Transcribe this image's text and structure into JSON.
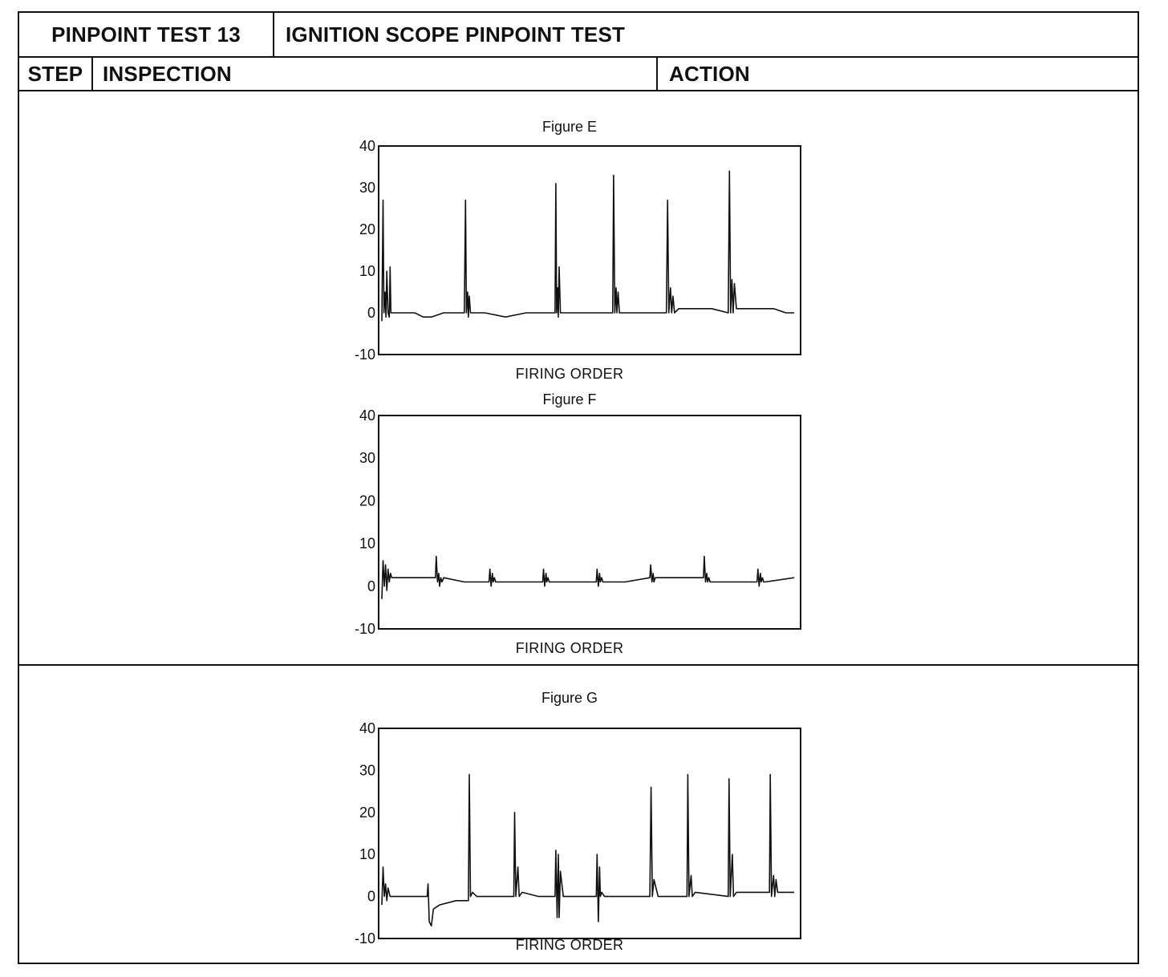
{
  "header": {
    "test_number": "PINPOINT TEST 13",
    "test_title": "IGNITION SCOPE PINPOINT TEST"
  },
  "columns": {
    "step": "STEP",
    "inspection": "INSPECTION",
    "action": "ACTION"
  },
  "figures": [
    {
      "title": "Figure E",
      "xlabel": "FIRING ORDER",
      "y_ticks": [
        "40",
        "30",
        "20",
        "10",
        "0",
        "-10"
      ]
    },
    {
      "title": "Figure F",
      "xlabel": "FIRING ORDER",
      "y_ticks": [
        "40",
        "30",
        "20",
        "10",
        "0",
        "-10"
      ]
    },
    {
      "title": "Figure G",
      "xlabel": "FIRING ORDER",
      "y_ticks": [
        "40",
        "30",
        "20",
        "10",
        "0",
        "-10"
      ]
    }
  ],
  "chart_data": [
    {
      "type": "line",
      "title": "Figure E",
      "xlabel": "FIRING ORDER",
      "ylabel": "",
      "ylim": [
        -10,
        40
      ],
      "x": [
        0,
        0.3,
        0.5,
        0.8,
        1,
        1.2,
        1.5,
        1.8,
        2,
        2.2,
        2.5,
        3,
        5,
        8,
        10,
        12,
        15,
        20,
        20.3,
        20.5,
        20.8,
        21,
        21.2,
        21.5,
        22,
        25,
        30,
        35,
        42,
        42.2,
        42.4,
        42.6,
        42.8,
        43,
        43.3,
        43.6,
        44,
        45,
        50,
        55,
        56,
        56.2,
        56.5,
        56.8,
        57,
        57.3,
        57.6,
        58,
        60,
        63,
        69,
        69.3,
        69.6,
        70,
        70.3,
        70.6,
        71,
        72,
        75,
        80,
        84,
        84.3,
        84.6,
        84.9,
        85.2,
        85.5,
        86,
        90,
        95,
        98,
        98.3,
        98.6,
        98.9,
        99.2,
        99.5,
        100
      ],
      "y": [
        -2,
        27,
        0,
        5,
        -1,
        10,
        0,
        -1,
        11,
        0,
        0,
        0,
        0,
        0,
        -1,
        -1,
        0,
        0,
        27,
        0,
        5,
        -1,
        4,
        0,
        0,
        0,
        -1,
        0,
        0,
        31,
        0,
        6,
        -1,
        11,
        0,
        0,
        0,
        0,
        0,
        0,
        0,
        33,
        0,
        6,
        0,
        5,
        0,
        0,
        0,
        0,
        0,
        27,
        0,
        6,
        0,
        4,
        0,
        1,
        1,
        1,
        0,
        34,
        0,
        8,
        0,
        7,
        1,
        1,
        1,
        0,
        0,
        0,
        0,
        0,
        0,
        0
      ]
    },
    {
      "type": "line",
      "title": "Figure F",
      "xlabel": "FIRING ORDER",
      "ylabel": "",
      "ylim": [
        -10,
        40
      ],
      "x": [
        0,
        0.3,
        0.6,
        0.9,
        1.2,
        1.5,
        1.8,
        2.1,
        2.4,
        3,
        6,
        10,
        13,
        13.2,
        13.5,
        13.8,
        14,
        14.3,
        14.6,
        15,
        20,
        26,
        26.2,
        26.5,
        26.8,
        27,
        27.3,
        27.6,
        28,
        33,
        39,
        39.2,
        39.5,
        39.8,
        40,
        40.3,
        40.6,
        41,
        46,
        52,
        52.2,
        52.5,
        52.8,
        53,
        53.3,
        53.6,
        54,
        59,
        65,
        65.2,
        65.5,
        65.8,
        66,
        66.3,
        66.6,
        67,
        72,
        78,
        78.2,
        78.5,
        78.8,
        79,
        79.3,
        79.6,
        80,
        85,
        91,
        91.2,
        91.5,
        91.8,
        92,
        92.3,
        92.6,
        93,
        100
      ],
      "y": [
        -3,
        6,
        0,
        5,
        -1,
        4,
        1,
        3,
        2,
        2,
        2,
        2,
        2,
        7,
        1,
        3,
        0,
        2,
        1,
        2,
        1,
        1,
        4,
        0,
        3,
        1,
        2,
        1,
        1,
        1,
        1,
        4,
        0,
        3,
        1,
        2,
        1,
        1,
        1,
        1,
        4,
        0,
        3,
        1,
        2,
        1,
        1,
        1,
        2,
        5,
        1,
        3,
        1,
        2,
        2,
        2,
        2,
        2,
        7,
        1,
        3,
        1,
        2,
        1,
        1,
        1,
        1,
        4,
        0,
        3,
        1,
        2,
        1,
        1,
        2
      ]
    },
    {
      "type": "line",
      "title": "Figure G",
      "xlabel": "FIRING ORDER",
      "ylabel": "",
      "ylim": [
        -10,
        40
      ],
      "x": [
        0,
        0.3,
        0.6,
        0.9,
        1.2,
        1.5,
        2,
        3,
        5,
        8,
        10,
        11,
        11.2,
        11.5,
        12,
        12.5,
        14,
        18,
        20,
        21,
        21.2,
        21.5,
        22,
        23,
        26,
        30,
        32,
        32.2,
        32.5,
        33,
        33.3,
        34,
        38,
        42,
        42.2,
        42.5,
        42.8,
        43,
        43.3,
        44,
        48,
        52,
        52.2,
        52.5,
        52.8,
        53,
        53.3,
        54,
        58,
        65,
        65.3,
        65.6,
        66,
        67,
        74,
        74.2,
        74.5,
        75,
        75.3,
        76,
        84,
        84.2,
        84.5,
        85,
        85.3,
        86,
        94,
        94.2,
        94.5,
        95,
        95.3,
        95.6,
        96,
        100
      ],
      "y": [
        -2,
        7,
        0,
        3,
        -1,
        2,
        0,
        0,
        0,
        0,
        0,
        0,
        3,
        -6,
        -7,
        -3,
        -2,
        -1,
        -1,
        -1,
        29,
        0,
        1,
        0,
        0,
        0,
        0,
        20,
        0,
        7,
        0,
        1,
        0,
        0,
        11,
        -5,
        10,
        -5,
        6,
        0,
        0,
        0,
        10,
        -6,
        7,
        0,
        1,
        0,
        0,
        0,
        26,
        0,
        4,
        0,
        0,
        29,
        0,
        5,
        0,
        1,
        0,
        28,
        0,
        10,
        0,
        1,
        1,
        29,
        0,
        5,
        0,
        4,
        1,
        1
      ]
    }
  ]
}
